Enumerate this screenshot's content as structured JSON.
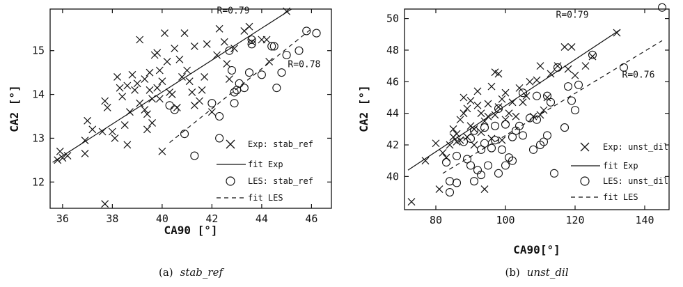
{
  "chart_data": [
    {
      "type": "scatter",
      "xlabel": "CA90 [°]",
      "ylabel": "CA2 [°]",
      "xlim": [
        35.5,
        46.8
      ],
      "ylim": [
        11.4,
        15.95
      ],
      "xticks": [
        36,
        38,
        40,
        42,
        44,
        46
      ],
      "yticks": [
        12,
        13,
        14,
        15
      ],
      "caption_label": "(a)",
      "caption_name": "stab_ref",
      "legend": [
        "Exp: stab_ref",
        "fit Exp",
        "LES: stab_ref",
        "fit LES"
      ],
      "annotations": [
        {
          "text": "R=0.79",
          "x": 42.2,
          "y": 15.85
        },
        {
          "text": "R=0.78",
          "x": 45.05,
          "y": 14.62
        }
      ],
      "series": [
        {
          "name": "Exp: stab_ref",
          "marker": "x",
          "points": [
            [
              35.8,
              12.5
            ],
            [
              35.9,
              12.7
            ],
            [
              36.0,
              12.55
            ],
            [
              36.2,
              12.6
            ],
            [
              36.9,
              12.65
            ],
            [
              36.9,
              12.95
            ],
            [
              37.0,
              13.4
            ],
            [
              37.2,
              13.2
            ],
            [
              37.6,
              13.15
            ],
            [
              37.7,
              13.85
            ],
            [
              37.8,
              13.7
            ],
            [
              37.7,
              11.5
            ],
            [
              38.0,
              13.15
            ],
            [
              38.1,
              13.0
            ],
            [
              38.2,
              14.4
            ],
            [
              38.3,
              14.15
            ],
            [
              38.4,
              13.95
            ],
            [
              38.5,
              13.3
            ],
            [
              38.6,
              14.2
            ],
            [
              38.7,
              13.6
            ],
            [
              38.8,
              14.45
            ],
            [
              38.6,
              12.85
            ],
            [
              38.9,
              14.1
            ],
            [
              39.0,
              14.25
            ],
            [
              39.1,
              13.8
            ],
            [
              39.1,
              15.25
            ],
            [
              39.3,
              13.65
            ],
            [
              39.3,
              14.35
            ],
            [
              39.4,
              13.55
            ],
            [
              39.4,
              13.2
            ],
            [
              39.5,
              14.1
            ],
            [
              39.5,
              14.5
            ],
            [
              39.6,
              13.9
            ],
            [
              39.6,
              13.35
            ],
            [
              39.7,
              14.9
            ],
            [
              39.8,
              14.15
            ],
            [
              39.8,
              14.95
            ],
            [
              39.9,
              13.9
            ],
            [
              39.9,
              14.55
            ],
            [
              40.0,
              14.3
            ],
            [
              40.0,
              12.7
            ],
            [
              40.1,
              15.4
            ],
            [
              40.2,
              14.75
            ],
            [
              40.3,
              14.05
            ],
            [
              40.4,
              14.0
            ],
            [
              40.5,
              15.05
            ],
            [
              40.6,
              13.7
            ],
            [
              40.7,
              14.8
            ],
            [
              40.8,
              14.4
            ],
            [
              40.9,
              15.4
            ],
            [
              41.0,
              14.55
            ],
            [
              41.1,
              14.3
            ],
            [
              41.2,
              14.05
            ],
            [
              41.3,
              13.75
            ],
            [
              41.3,
              15.1
            ],
            [
              41.5,
              13.85
            ],
            [
              41.6,
              14.1
            ],
            [
              41.7,
              14.4
            ],
            [
              41.8,
              15.15
            ],
            [
              42.0,
              13.6
            ],
            [
              42.2,
              14.9
            ],
            [
              42.3,
              15.5
            ],
            [
              42.5,
              15.2
            ],
            [
              42.6,
              14.7
            ],
            [
              42.7,
              14.35
            ],
            [
              42.9,
              15.05
            ],
            [
              43.3,
              15.45
            ],
            [
              43.5,
              15.55
            ],
            [
              43.6,
              15.2
            ],
            [
              44.0,
              15.25
            ],
            [
              44.2,
              15.25
            ],
            [
              44.3,
              14.75
            ],
            [
              45.0,
              15.9
            ]
          ]
        },
        {
          "name": "LES: stab_ref",
          "marker": "o",
          "points": [
            [
              40.3,
              13.75
            ],
            [
              40.5,
              13.65
            ],
            [
              40.9,
              13.1
            ],
            [
              41.3,
              12.6
            ],
            [
              42.0,
              13.8
            ],
            [
              42.3,
              13.0
            ],
            [
              42.3,
              13.5
            ],
            [
              42.7,
              15.0
            ],
            [
              42.8,
              14.55
            ],
            [
              42.9,
              13.8
            ],
            [
              42.9,
              14.05
            ],
            [
              43.0,
              14.1
            ],
            [
              43.1,
              14.25
            ],
            [
              43.3,
              14.15
            ],
            [
              43.5,
              14.5
            ],
            [
              43.6,
              15.15
            ],
            [
              43.6,
              15.25
            ],
            [
              44.0,
              14.45
            ],
            [
              44.4,
              15.1
            ],
            [
              44.5,
              15.1
            ],
            [
              44.6,
              14.15
            ],
            [
              44.8,
              14.5
            ],
            [
              45.0,
              14.9
            ],
            [
              45.5,
              15.0
            ],
            [
              45.8,
              15.45
            ],
            [
              46.2,
              15.4
            ]
          ]
        }
      ],
      "fits": [
        {
          "name": "fit Exp",
          "style": "solid",
          "from": [
            35.6,
            12.45
          ],
          "to": [
            45.2,
            15.95
          ]
        },
        {
          "name": "fit LES",
          "style": "dashed",
          "from": [
            40.3,
            12.9
          ],
          "to": [
            46.0,
            15.5
          ]
        }
      ]
    },
    {
      "type": "scatter",
      "xlabel": "CA90[°]",
      "ylabel": "CA2 [°]",
      "xlim": [
        71,
        147
      ],
      "ylim": [
        37.9,
        50.6
      ],
      "xticks": [
        80,
        100,
        120,
        140
      ],
      "yticks": [
        40,
        42,
        44,
        46,
        48,
        50
      ],
      "caption_label": "(b)",
      "caption_name": "unst_dil",
      "legend": [
        "Exp: unst_dil",
        "fit Exp",
        "LES: unst_dil",
        "fit LES"
      ],
      "annotations": [
        {
          "text": "R=0.79",
          "x": 114.5,
          "y": 50.05
        },
        {
          "text": "R=0.76",
          "x": 133.5,
          "y": 46.25
        }
      ],
      "series": [
        {
          "name": "Exp: unst_dil",
          "marker": "x",
          "points": [
            [
              73,
              38.4
            ],
            [
              77,
              41.0
            ],
            [
              80,
              42.1
            ],
            [
              81,
              39.2
            ],
            [
              82,
              41.5
            ],
            [
              83,
              41.2
            ],
            [
              84,
              42.0
            ],
            [
              85,
              42.5
            ],
            [
              85,
              43.0
            ],
            [
              86,
              42.2
            ],
            [
              86,
              42.7
            ],
            [
              87,
              42.3
            ],
            [
              87,
              43.6
            ],
            [
              88,
              44.0
            ],
            [
              88,
              45.0
            ],
            [
              89,
              42.5
            ],
            [
              89,
              44.3
            ],
            [
              90,
              43.2
            ],
            [
              90,
              44.8
            ],
            [
              91,
              42.0
            ],
            [
              91,
              43.0
            ],
            [
              92,
              44.5
            ],
            [
              92,
              45.4
            ],
            [
              93,
              42.8
            ],
            [
              93,
              44.0
            ],
            [
              94,
              39.2
            ],
            [
              94,
              43.5
            ],
            [
              95,
              43.8
            ],
            [
              95,
              44.6
            ],
            [
              96,
              42.4
            ],
            [
              96,
              45.7
            ],
            [
              97,
              43.9
            ],
            [
              97,
              46.6
            ],
            [
              98,
              44.4
            ],
            [
              98,
              46.5
            ],
            [
              99,
              42.3
            ],
            [
              99,
              44.9
            ],
            [
              100,
              43.6
            ],
            [
              100,
              45.3
            ],
            [
              101,
              44.0
            ],
            [
              102,
              44.7
            ],
            [
              103,
              43.8
            ],
            [
              104,
              45.6
            ],
            [
              105,
              44.7
            ],
            [
              106,
              45.1
            ],
            [
              107,
              46.0
            ],
            [
              108,
              43.8
            ],
            [
              109,
              46.1
            ],
            [
              110,
              43.9
            ],
            [
              110,
              47.0
            ],
            [
              111,
              44.2
            ],
            [
              112,
              45.0
            ],
            [
              113,
              46.5
            ],
            [
              115,
              47.0
            ],
            [
              117,
              48.2
            ],
            [
              118,
              46.8
            ],
            [
              119,
              48.2
            ],
            [
              120,
              46.4
            ],
            [
              123,
              47.0
            ],
            [
              125,
              47.6
            ],
            [
              132,
              49.1
            ]
          ]
        },
        {
          "name": "LES: unst_dil",
          "marker": "o",
          "points": [
            [
              83,
              40.9
            ],
            [
              84,
              39.0
            ],
            [
              84,
              39.7
            ],
            [
              86,
              39.6
            ],
            [
              86,
              41.3
            ],
            [
              88,
              42.2
            ],
            [
              89,
              41.1
            ],
            [
              90,
              40.7
            ],
            [
              90,
              42.4
            ],
            [
              91,
              39.7
            ],
            [
              91,
              42.9
            ],
            [
              92,
              40.4
            ],
            [
              93,
              40.1
            ],
            [
              93,
              41.7
            ],
            [
              94,
              42.1
            ],
            [
              94,
              43.1
            ],
            [
              95,
              40.7
            ],
            [
              96,
              41.8
            ],
            [
              97,
              42.3
            ],
            [
              97,
              43.2
            ],
            [
              98,
              40.2
            ],
            [
              98,
              44.3
            ],
            [
              99,
              41.7
            ],
            [
              100,
              40.7
            ],
            [
              100,
              43.3
            ],
            [
              101,
              41.2
            ],
            [
              102,
              41.0
            ],
            [
              102,
              42.5
            ],
            [
              103,
              42.9
            ],
            [
              104,
              43.2
            ],
            [
              105,
              42.6
            ],
            [
              105,
              45.3
            ],
            [
              107,
              43.7
            ],
            [
              108,
              41.7
            ],
            [
              109,
              43.6
            ],
            [
              109,
              45.1
            ],
            [
              110,
              42.0
            ],
            [
              111,
              42.2
            ],
            [
              112,
              42.6
            ],
            [
              112,
              45.1
            ],
            [
              113,
              44.7
            ],
            [
              114,
              40.2
            ],
            [
              115,
              46.9
            ],
            [
              117,
              43.1
            ],
            [
              118,
              45.7
            ],
            [
              119,
              44.8
            ],
            [
              120,
              44.2
            ],
            [
              121,
              45.8
            ],
            [
              125,
              47.7
            ],
            [
              134,
              46.9
            ],
            [
              145,
              50.7
            ]
          ]
        }
      ],
      "fits": [
        {
          "name": "fit Exp",
          "style": "solid",
          "from": [
            72,
            40.4
          ],
          "to": [
            133,
            49.3
          ]
        },
        {
          "name": "fit LES",
          "style": "dashed",
          "from": [
            82,
            40.2
          ],
          "to": [
            145,
            48.6
          ]
        }
      ]
    }
  ]
}
